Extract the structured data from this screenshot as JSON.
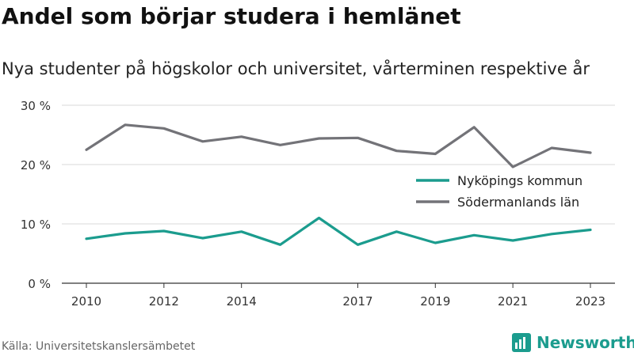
{
  "chart_data": {
    "type": "line",
    "title": "Andel som börjar studera i hemlänet",
    "subtitle": "Nya studenter på högskolor och universitet, vårterminen respektive år",
    "x": [
      2010,
      2011,
      2012,
      2013,
      2014,
      2015,
      2016,
      2017,
      2018,
      2019,
      2020,
      2021,
      2022,
      2023
    ],
    "x_tick_values": [
      2010,
      2012,
      2014,
      2017,
      2019,
      2021,
      2023
    ],
    "x_tick_labels": [
      "2010",
      "2012",
      "2014",
      "2017",
      "2019",
      "2021",
      "2023"
    ],
    "y_tick_values": [
      0,
      10,
      20,
      30
    ],
    "y_tick_labels": [
      "0 %",
      "10 %",
      "20 %",
      "30 %"
    ],
    "ylim": [
      0,
      30
    ],
    "xlim": [
      2010,
      2023
    ],
    "grid": true,
    "legend_position": "right",
    "series": [
      {
        "name": "Nyköpings kommun",
        "color": "#1b9c8e",
        "values": [
          7.5,
          8.4,
          8.8,
          7.6,
          8.7,
          6.5,
          11.0,
          6.5,
          8.7,
          6.8,
          8.1,
          7.2,
          8.3,
          9.0
        ]
      },
      {
        "name": "Södermanlands län",
        "color": "#737378",
        "values": [
          22.5,
          26.7,
          26.1,
          23.9,
          24.7,
          23.3,
          24.4,
          24.5,
          22.3,
          21.8,
          26.3,
          19.6,
          22.8,
          22.0
        ]
      }
    ]
  },
  "source": "Källa: Universitetskanslersämbetet",
  "brand": {
    "name": "Newsworthy",
    "color": "#1b9c8e",
    "icon": "newsworthy-logo-icon"
  }
}
